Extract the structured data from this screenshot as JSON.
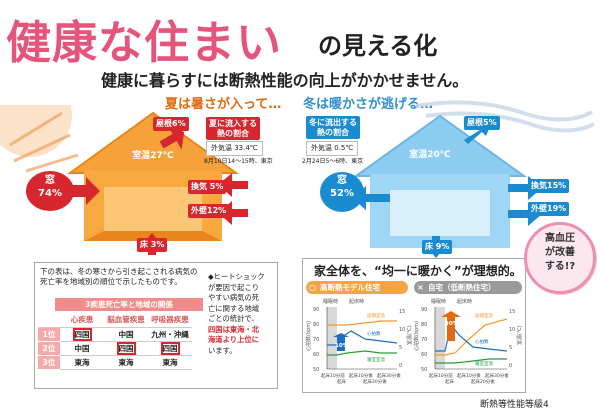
{
  "title": {
    "main": "健康な住まい",
    "sub": "の見える化"
  },
  "subtitle": "健康に暮らすには断熱性能の向上がかかせません。",
  "summer": {
    "heading": "夏は暑さが入って…",
    "room": "室温27℃",
    "roof": "屋根6%",
    "window_label": "窓",
    "window_pct": "74%",
    "vent": "換気 5%",
    "wall": "外壁12%",
    "floor": "床 3%",
    "flow_label": [
      "夏に流入する",
      "熱の割合"
    ],
    "outdoor": "外気温 33.4℃",
    "date": "8月10日14～15時、東京"
  },
  "winter": {
    "heading": "冬は暖かさが逃げる…",
    "room": "室温20℃",
    "roof": "屋根5%",
    "window_label": "窓",
    "window_pct": "52%",
    "vent": "換気15%",
    "wall": "外壁19%",
    "floor": "床 9%",
    "flow_label": [
      "冬に流出する",
      "熱の割合"
    ],
    "outdoor": "外気温 0.5℃",
    "date": "2月24日5～6時、東京"
  },
  "ranking": {
    "intro": [
      "下の表は、冬の寒さから引き起こされる病気の",
      "死亡率を地域別の順位で示したものです。"
    ],
    "table_title": "3疾患死亡率と地域の関係",
    "columns": [
      "心疾患",
      "脳血管疾患",
      "呼吸器疾患"
    ],
    "rows": [
      {
        "rank": "1位",
        "cells": [
          "四国",
          "中国",
          "九州・沖縄"
        ]
      },
      {
        "rank": "2位",
        "cells": [
          "中国",
          "四国",
          "四国"
        ]
      },
      {
        "rank": "3位",
        "cells": [
          "東海",
          "東海",
          "東海"
        ]
      }
    ]
  },
  "heatshock": {
    "lines": [
      "◆ヒートショック",
      "が要因で起こり",
      "やすい病気の死",
      "亡に関する地域",
      "ごとの統計で、"
    ],
    "highlight": [
      "四国は東海・北",
      "海道より上位に"
    ],
    "end": "います。"
  },
  "comparison": {
    "heading": "家全体を、“均一に暖かく”が理想的。",
    "good_mark": "○",
    "good_label": "高断熱モデル住宅",
    "bad_mark": "×",
    "bad_label": "自宅（低断熱住宅）",
    "good_chart": {
      "ylabel": "心拍数(bpm)",
      "yticks": [
        "90",
        "80",
        "70",
        "60",
        "50"
      ],
      "right_label": "室温(℃)",
      "rticks": [
        "15",
        "10",
        "5",
        "0"
      ],
      "phases": [
        "睡眠時",
        "起床時"
      ],
      "xticks": [
        "起床10分前",
        "起床",
        "起床10分後",
        "起床20分後",
        "起床30分後"
      ],
      "callout": "10% 上昇",
      "legend": [
        "居間室温",
        "心拍数",
        "寝室室温"
      ]
    },
    "bad_chart": {
      "ylabel": "心拍数(bpm)",
      "yticks": [
        "90",
        "80",
        "70",
        "60",
        "50"
      ],
      "right_label": "室温(℃)",
      "rticks": [
        "15",
        "10",
        "5",
        "0"
      ],
      "phases": [
        "睡眠時",
        "起床時"
      ],
      "xticks": [
        "起床10分前",
        "起床",
        "起床10分後",
        "起床20分後",
        "起床30分後"
      ],
      "callout": "30% 上昇",
      "legend": [
        "居間室温",
        "心拍数",
        "寝室室温"
      ]
    }
  },
  "bp_bubble": [
    "高血圧",
    "が改善",
    "する!?"
  ],
  "footnote": "断熱等性能等級4",
  "colors": {
    "title": "#e5547a",
    "summer": "#f5a23a",
    "winter": "#8ccdf1",
    "accent_red": "#d7262e",
    "accent_blue": "#1b8bd1"
  }
}
